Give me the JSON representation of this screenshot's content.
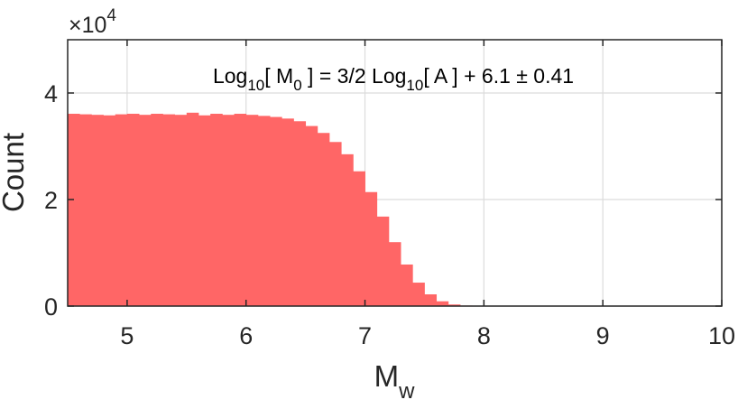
{
  "chart_data": {
    "type": "bar",
    "title": "",
    "xlabel": "M",
    "xlabel_sub": "w",
    "ylabel": "Count",
    "xlim": [
      4.5,
      10
    ],
    "ylim": [
      0,
      50000
    ],
    "x_ticks": [
      5,
      6,
      7,
      8,
      9,
      10
    ],
    "x_tick_labels": [
      "5",
      "6",
      "7",
      "8",
      "9",
      "10"
    ],
    "y_ticks": [
      0,
      20000,
      40000
    ],
    "y_tick_labels": [
      "0",
      "2",
      "4"
    ],
    "y_multiplier": {
      "base": "×10",
      "exponent": "4"
    },
    "grid": true,
    "legend": "none",
    "bar_color": "#ff6666",
    "bin_width": 0.1,
    "bin_starts": [
      4.5,
      4.6,
      4.7,
      4.8,
      4.9,
      5.0,
      5.1,
      5.2,
      5.3,
      5.4,
      5.5,
      5.6,
      5.7,
      5.8,
      5.9,
      6.0,
      6.1,
      6.2,
      6.3,
      6.4,
      6.5,
      6.6,
      6.7,
      6.8,
      6.9,
      7.0,
      7.1,
      7.2,
      7.3,
      7.4,
      7.5,
      7.6,
      7.7,
      7.8,
      7.9
    ],
    "values": [
      36100,
      36000,
      35900,
      35800,
      36000,
      36100,
      35900,
      36100,
      36000,
      35900,
      36300,
      35800,
      36100,
      35900,
      36100,
      35900,
      35700,
      35500,
      35200,
      34700,
      33800,
      32500,
      30800,
      28500,
      25300,
      21400,
      16800,
      12000,
      7800,
      4400,
      2200,
      900,
      300,
      100,
      30
    ],
    "annotation": {
      "parts": [
        "Log",
        "10",
        "[ M",
        "0",
        " ] = 3/2 Log",
        "10",
        "[ A ] + 6.1 ± 0.41"
      ]
    }
  }
}
